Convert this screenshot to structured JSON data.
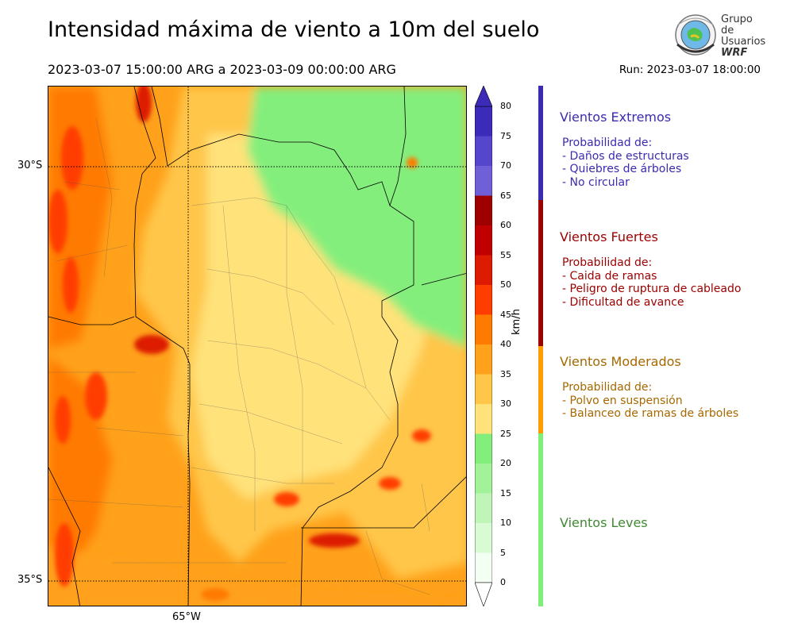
{
  "title": "Intensidad máxima de viento a 10m del suelo",
  "subtitle": "2023-03-07 15:00:00 ARG  a  2023-03-09 00:00:00 ARG",
  "run": "Run: 2023-03-07 18:00:00",
  "logo": {
    "line1": "Grupo de",
    "line2": "Usuarios",
    "line3": "WRF",
    "icon": "globe-seal-icon"
  },
  "map": {
    "lat_labels": [
      "30°S",
      "35°S"
    ],
    "lon_labels": [
      "65°W"
    ]
  },
  "colorbar": {
    "unit": "km/h",
    "ticks": [
      "0",
      "5",
      "10",
      "15",
      "20",
      "25",
      "30",
      "35",
      "40",
      "45",
      "50",
      "55",
      "60",
      "65",
      "70",
      "75",
      "80"
    ],
    "colors": [
      "#f2fff2",
      "#d8fbd4",
      "#bff6b8",
      "#a2f29a",
      "#84ee7c",
      "#ffe27a",
      "#ffc64a",
      "#ffa11a",
      "#ff7a00",
      "#ff3d00",
      "#dd1b00",
      "#c00000",
      "#9e0000",
      "#7060d8",
      "#5646cc",
      "#3b2bb8"
    ]
  },
  "legend": [
    {
      "title": "Vientos Extremos",
      "color": "#3a2bb0",
      "lines": [
        "Probabilidad de:",
        "- Daños de estructuras",
        "- Quiebres de árboles",
        "- No circular"
      ]
    },
    {
      "title": "Vientos Fuertes",
      "color": "#9b0000",
      "lines": [
        "Probabilidad de:",
        "- Caida de ramas",
        "- Peligro de ruptura de cableado",
        "- Dificultad de avance"
      ]
    },
    {
      "title": "Vientos Moderados",
      "color": "#a66800",
      "bar_color": "#ff9d00",
      "lines": [
        "Probabilidad de:",
        "- Polvo en suspensión",
        "- Balanceo de ramas de árboles"
      ]
    },
    {
      "title": "Vientos Leves",
      "color": "#3f8a32",
      "bar_color": "#7ef07a",
      "lines": []
    }
  ]
}
